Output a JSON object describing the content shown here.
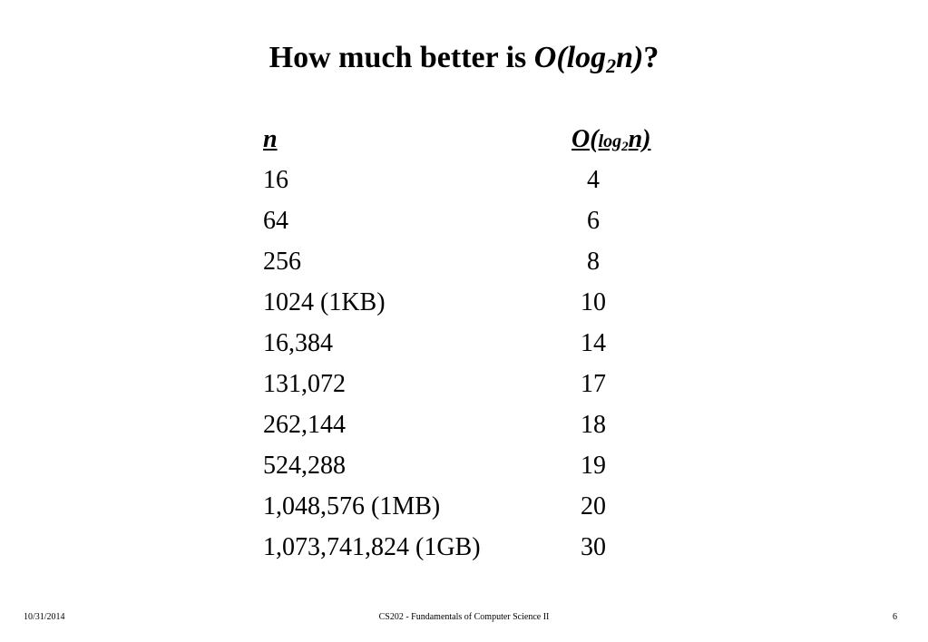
{
  "title": {
    "prefix": "How much better is ",
    "big_o": "O(log",
    "base": "2",
    "arg": "n)",
    "suffix": "?"
  },
  "table": {
    "headers": {
      "n": "n",
      "o_big": "O(",
      "o_log": "log",
      "o_base": "2",
      "o_arg": "n)"
    },
    "rows": [
      {
        "n": "16",
        "log": "4"
      },
      {
        "n": "64",
        "log": "6"
      },
      {
        "n": "256",
        "log": "8"
      },
      {
        "n": "1024 (1KB)",
        "log": "10"
      },
      {
        "n": "16,384",
        "log": "14"
      },
      {
        "n": "131,072",
        "log": "17"
      },
      {
        "n": "262,144",
        "log": "18"
      },
      {
        "n": "524,288",
        "log": "19"
      },
      {
        "n": "1,048,576 (1MB)",
        "log": "20"
      },
      {
        "n": "1,073,741,824 (1GB)",
        "log": "30"
      }
    ]
  },
  "footer": {
    "date": "10/31/2014",
    "course": "CS202 - Fundamentals of Computer Science II",
    "page": "6"
  }
}
